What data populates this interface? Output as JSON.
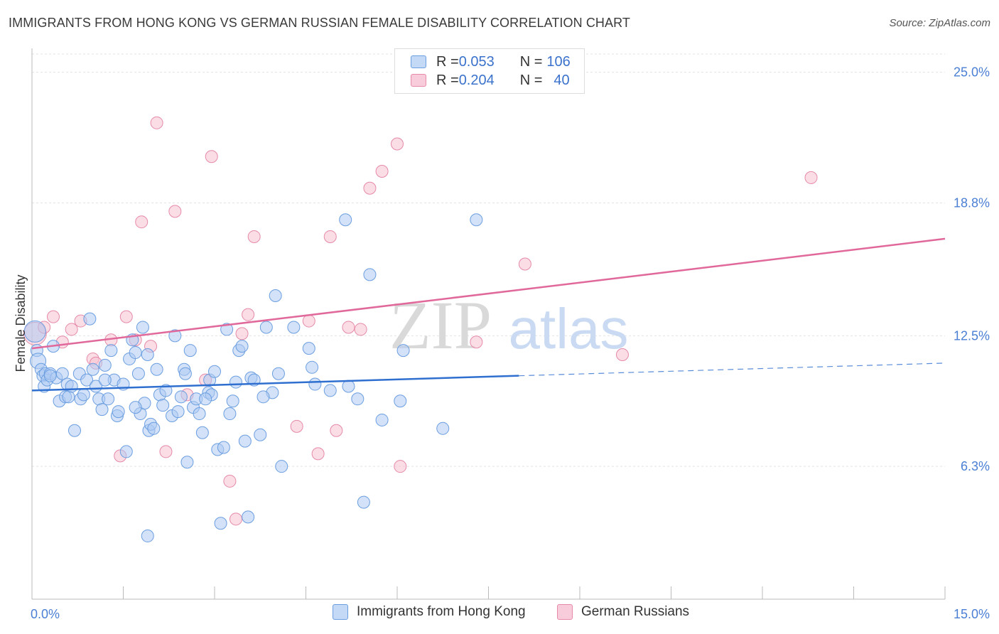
{
  "header": {
    "title": "IMMIGRANTS FROM HONG KONG VS GERMAN RUSSIAN FEMALE DISABILITY CORRELATION CHART",
    "source": "Source: ZipAtlas.com"
  },
  "legend": {
    "series": [
      {
        "r_label": "R = ",
        "r_value": "0.053",
        "n_label": "N = ",
        "n_value": "106"
      },
      {
        "r_label": "R = ",
        "r_value": "0.204",
        "n_label": "N = ",
        "n_value": "40"
      }
    ]
  },
  "watermark": {
    "zip": "ZIP",
    "atlas": "atlas"
  },
  "colors": {
    "blue_fill": "#aecbf2",
    "blue_stroke": "#6b9ee0",
    "blue_line": "#2f6fcf",
    "pink_fill": "#f7c1d2",
    "pink_stroke": "#e58aa8",
    "pink_line": "#e0689a",
    "tick_label": "#4a7fd4",
    "grid": "#e3e3e3"
  },
  "chart_data": {
    "type": "scatter",
    "title": "IMMIGRANTS FROM HONG KONG VS GERMAN RUSSIAN FEMALE DISABILITY CORRELATION CHART",
    "xlabel": "",
    "ylabel": "Female Disability",
    "xlim": [
      0,
      15
    ],
    "ylim": [
      0,
      26
    ],
    "x_tick_labels": [
      "0.0%",
      "15.0%"
    ],
    "y_ticks": [
      6.3,
      12.5,
      18.8,
      25.0
    ],
    "y_tick_labels": [
      "6.3%",
      "12.5%",
      "18.8%",
      "25.0%"
    ],
    "grid": true,
    "legend_position": "top-center",
    "series": [
      {
        "name": "Immigrants from Hong Kong",
        "color": "#aecbf2",
        "trend": {
          "x0": 0.0,
          "y0": 9.9,
          "x1": 8.0,
          "y1": 10.6,
          "dashed_to_x": 15.0,
          "dashed_to_y": 11.2
        },
        "points": [
          [
            0.05,
            12.7
          ],
          [
            0.08,
            11.8
          ],
          [
            0.1,
            11.3
          ],
          [
            0.15,
            10.9
          ],
          [
            0.18,
            10.6
          ],
          [
            0.2,
            10.1
          ],
          [
            0.22,
            10.7
          ],
          [
            0.25,
            10.4
          ],
          [
            0.3,
            10.7
          ],
          [
            0.35,
            12.0
          ],
          [
            0.4,
            10.5
          ],
          [
            0.45,
            9.4
          ],
          [
            0.5,
            10.7
          ],
          [
            0.55,
            9.6
          ],
          [
            0.58,
            10.2
          ],
          [
            0.6,
            9.6
          ],
          [
            0.65,
            10.1
          ],
          [
            0.7,
            8.0
          ],
          [
            0.78,
            10.7
          ],
          [
            0.8,
            9.5
          ],
          [
            0.85,
            9.7
          ],
          [
            0.9,
            10.4
          ],
          [
            0.95,
            13.3
          ],
          [
            1.0,
            10.9
          ],
          [
            1.05,
            10.1
          ],
          [
            1.1,
            9.5
          ],
          [
            1.15,
            9.0
          ],
          [
            1.2,
            11.1
          ],
          [
            1.25,
            9.5
          ],
          [
            1.3,
            11.8
          ],
          [
            1.35,
            10.4
          ],
          [
            1.4,
            8.7
          ],
          [
            1.42,
            8.9
          ],
          [
            1.5,
            10.2
          ],
          [
            1.55,
            7.0
          ],
          [
            1.6,
            11.4
          ],
          [
            1.65,
            12.3
          ],
          [
            1.7,
            11.7
          ],
          [
            1.75,
            10.7
          ],
          [
            1.78,
            8.8
          ],
          [
            1.82,
            12.9
          ],
          [
            1.85,
            9.3
          ],
          [
            1.9,
            11.6
          ],
          [
            1.92,
            8.0
          ],
          [
            1.95,
            8.3
          ],
          [
            2.0,
            8.1
          ],
          [
            2.05,
            10.9
          ],
          [
            2.1,
            9.7
          ],
          [
            2.15,
            9.2
          ],
          [
            2.2,
            9.9
          ],
          [
            2.3,
            8.7
          ],
          [
            2.35,
            12.5
          ],
          [
            2.4,
            8.9
          ],
          [
            2.5,
            10.9
          ],
          [
            2.52,
            10.7
          ],
          [
            2.55,
            6.5
          ],
          [
            2.6,
            11.8
          ],
          [
            2.65,
            9.1
          ],
          [
            2.7,
            9.5
          ],
          [
            2.75,
            8.8
          ],
          [
            2.8,
            7.9
          ],
          [
            2.9,
            9.8
          ],
          [
            2.92,
            10.4
          ],
          [
            2.95,
            9.7
          ],
          [
            3.0,
            10.8
          ],
          [
            3.05,
            7.1
          ],
          [
            3.1,
            3.6
          ],
          [
            3.15,
            7.2
          ],
          [
            3.2,
            12.8
          ],
          [
            3.25,
            8.8
          ],
          [
            3.3,
            9.4
          ],
          [
            3.35,
            10.3
          ],
          [
            3.4,
            11.8
          ],
          [
            3.45,
            12.0
          ],
          [
            3.5,
            7.5
          ],
          [
            3.55,
            3.9
          ],
          [
            3.6,
            10.5
          ],
          [
            3.65,
            10.4
          ],
          [
            3.75,
            7.8
          ],
          [
            3.85,
            12.9
          ],
          [
            3.95,
            9.8
          ],
          [
            4.0,
            14.4
          ],
          [
            4.05,
            10.7
          ],
          [
            4.1,
            6.3
          ],
          [
            4.3,
            12.9
          ],
          [
            4.55,
            11.9
          ],
          [
            4.6,
            11.0
          ],
          [
            4.65,
            10.2
          ],
          [
            5.15,
            18.0
          ],
          [
            5.2,
            10.1
          ],
          [
            5.35,
            9.5
          ],
          [
            5.45,
            4.6
          ],
          [
            5.55,
            15.4
          ],
          [
            5.75,
            8.5
          ],
          [
            6.1,
            11.8
          ],
          [
            6.05,
            9.4
          ],
          [
            6.75,
            8.1
          ],
          [
            7.3,
            18.0
          ],
          [
            1.9,
            3.0
          ],
          [
            2.45,
            9.6
          ],
          [
            3.8,
            9.6
          ],
          [
            1.2,
            10.4
          ],
          [
            0.3,
            10.6
          ],
          [
            4.9,
            9.9
          ],
          [
            2.85,
            9.5
          ],
          [
            1.7,
            9.1
          ]
        ]
      },
      {
        "name": "German Russians",
        "color": "#f7c1d2",
        "trend": {
          "x0": 0.0,
          "y0": 11.9,
          "x1": 15.0,
          "y1": 17.1
        },
        "points": [
          [
            0.05,
            12.6
          ],
          [
            0.2,
            12.9
          ],
          [
            0.35,
            13.4
          ],
          [
            0.5,
            12.2
          ],
          [
            0.65,
            12.8
          ],
          [
            0.8,
            13.2
          ],
          [
            1.0,
            11.4
          ],
          [
            1.05,
            11.2
          ],
          [
            1.3,
            12.3
          ],
          [
            1.45,
            6.8
          ],
          [
            1.55,
            13.4
          ],
          [
            1.7,
            12.3
          ],
          [
            1.8,
            17.9
          ],
          [
            1.95,
            12.0
          ],
          [
            2.05,
            22.6
          ],
          [
            2.2,
            7.0
          ],
          [
            2.35,
            18.4
          ],
          [
            2.85,
            10.4
          ],
          [
            2.95,
            21.0
          ],
          [
            2.55,
            9.7
          ],
          [
            3.25,
            5.6
          ],
          [
            3.35,
            3.8
          ],
          [
            3.45,
            12.6
          ],
          [
            3.55,
            13.5
          ],
          [
            3.65,
            17.2
          ],
          [
            4.35,
            8.2
          ],
          [
            4.55,
            13.2
          ],
          [
            4.7,
            6.9
          ],
          [
            4.9,
            17.2
          ],
          [
            5.0,
            8.0
          ],
          [
            5.2,
            12.9
          ],
          [
            5.4,
            12.8
          ],
          [
            5.55,
            19.5
          ],
          [
            5.75,
            20.3
          ],
          [
            6.0,
            21.6
          ],
          [
            6.05,
            6.3
          ],
          [
            7.3,
            12.2
          ],
          [
            8.1,
            15.9
          ],
          [
            9.7,
            11.6
          ],
          [
            12.8,
            20.0
          ]
        ]
      }
    ]
  },
  "bottom_legend": {
    "items": [
      "Immigrants from Hong Kong",
      "German Russians"
    ]
  }
}
